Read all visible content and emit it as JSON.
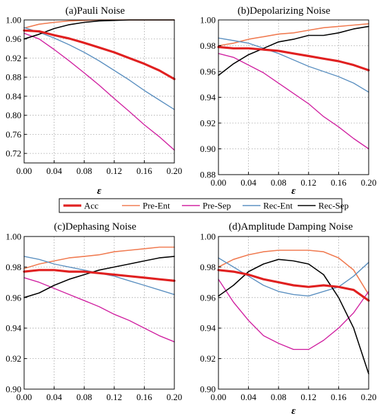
{
  "chart_data": [
    {
      "type": "line",
      "title": "(a)Pauli Noise",
      "xlabel": "ε",
      "ylabel": "",
      "xlim": [
        0,
        0.2
      ],
      "ylim": [
        0.7,
        1.0
      ],
      "grid": true,
      "xticks": [
        "0.00",
        "0.04",
        "0.08",
        "0.12",
        "0.16",
        "0.20"
      ],
      "yticks": [
        "0.72",
        "0.76",
        "0.80",
        "0.84",
        "0.88",
        "0.92",
        "0.96",
        "1.00"
      ],
      "x": [
        0,
        0.02,
        0.04,
        0.06,
        0.08,
        0.1,
        0.12,
        0.14,
        0.16,
        0.18,
        0.2
      ],
      "series": [
        {
          "name": "Acc",
          "values": [
            0.978,
            0.976,
            0.968,
            0.961,
            0.952,
            0.942,
            0.932,
            0.92,
            0.908,
            0.894,
            0.876
          ]
        },
        {
          "name": "Pre-Ent",
          "values": [
            0.983,
            0.991,
            0.995,
            0.998,
            0.999,
            1.0,
            1.0,
            1.0,
            1.0,
            1.0,
            1.0
          ]
        },
        {
          "name": "Pre-Sep",
          "values": [
            0.972,
            0.96,
            0.938,
            0.914,
            0.889,
            0.863,
            0.835,
            0.808,
            0.78,
            0.755,
            0.727
          ]
        },
        {
          "name": "Rec-Ent",
          "values": [
            0.984,
            0.974,
            0.962,
            0.948,
            0.932,
            0.914,
            0.894,
            0.874,
            0.852,
            0.832,
            0.812
          ]
        },
        {
          "name": "Rec-Sep",
          "values": [
            0.96,
            0.97,
            0.982,
            0.99,
            0.995,
            0.998,
            0.999,
            1.0,
            1.0,
            1.0,
            1.0
          ]
        }
      ]
    },
    {
      "type": "line",
      "title": "(b)Depolarizing Noise",
      "xlabel": "ε",
      "ylabel": "",
      "xlim": [
        0,
        0.2
      ],
      "ylim": [
        0.88,
        1.0
      ],
      "grid": true,
      "xticks": [
        "0.00",
        "0.04",
        "0.08",
        "0.12",
        "0.16",
        "0.20"
      ],
      "yticks": [
        "0.88",
        "0.90",
        "0.92",
        "0.94",
        "0.96",
        "0.98",
        "1.00"
      ],
      "x": [
        0,
        0.02,
        0.04,
        0.06,
        0.08,
        0.1,
        0.12,
        0.14,
        0.16,
        0.18,
        0.2
      ],
      "series": [
        {
          "name": "Acc",
          "values": [
            0.979,
            0.978,
            0.978,
            0.977,
            0.976,
            0.974,
            0.972,
            0.97,
            0.968,
            0.965,
            0.961
          ]
        },
        {
          "name": "Pre-Ent",
          "values": [
            0.98,
            0.982,
            0.985,
            0.987,
            0.989,
            0.99,
            0.992,
            0.994,
            0.995,
            0.996,
            0.997
          ]
        },
        {
          "name": "Pre-Sep",
          "values": [
            0.974,
            0.971,
            0.965,
            0.959,
            0.951,
            0.943,
            0.935,
            0.925,
            0.917,
            0.908,
            0.9
          ]
        },
        {
          "name": "Rec-Ent",
          "values": [
            0.986,
            0.984,
            0.982,
            0.978,
            0.974,
            0.969,
            0.964,
            0.96,
            0.956,
            0.951,
            0.944
          ]
        },
        {
          "name": "Rec-Sep",
          "values": [
            0.957,
            0.966,
            0.973,
            0.978,
            0.983,
            0.985,
            0.988,
            0.988,
            0.99,
            0.993,
            0.995
          ]
        }
      ]
    },
    {
      "type": "line",
      "title": "(c)Dephasing Noise",
      "xlabel": "",
      "ylabel": "",
      "xlim": [
        0,
        0.2
      ],
      "ylim": [
        0.9,
        1.0
      ],
      "grid": true,
      "xticks": [
        "0.00",
        "0.04",
        "0.08",
        "0.12",
        "0.16",
        "0.20"
      ],
      "yticks": [
        "0.90",
        "0.92",
        "0.94",
        "0.96",
        "0.98",
        "1.00"
      ],
      "x": [
        0,
        0.02,
        0.04,
        0.06,
        0.08,
        0.1,
        0.12,
        0.14,
        0.16,
        0.18,
        0.2
      ],
      "series": [
        {
          "name": "Acc",
          "values": [
            0.977,
            0.978,
            0.978,
            0.977,
            0.977,
            0.976,
            0.975,
            0.974,
            0.973,
            0.972,
            0.971
          ]
        },
        {
          "name": "Pre-Ent",
          "values": [
            0.979,
            0.982,
            0.984,
            0.986,
            0.987,
            0.988,
            0.99,
            0.991,
            0.992,
            0.993,
            0.993
          ]
        },
        {
          "name": "Pre-Sep",
          "values": [
            0.973,
            0.97,
            0.966,
            0.962,
            0.958,
            0.954,
            0.949,
            0.945,
            0.94,
            0.935,
            0.931
          ]
        },
        {
          "name": "Rec-Ent",
          "values": [
            0.987,
            0.985,
            0.982,
            0.98,
            0.978,
            0.976,
            0.974,
            0.971,
            0.968,
            0.965,
            0.962
          ]
        },
        {
          "name": "Rec-Sep",
          "values": [
            0.96,
            0.963,
            0.968,
            0.972,
            0.975,
            0.978,
            0.98,
            0.982,
            0.984,
            0.986,
            0.987
          ]
        }
      ]
    },
    {
      "type": "line",
      "title": "(d)Amplitude Damping Noise",
      "xlabel": "ε",
      "ylabel": "",
      "xlim": [
        0,
        0.2
      ],
      "ylim": [
        0.9,
        1.0
      ],
      "grid": true,
      "xticks": [
        "0.00",
        "0.04",
        "0.08",
        "0.12",
        "0.16",
        "0.20"
      ],
      "yticks": [
        "0.90",
        "0.92",
        "0.94",
        "0.96",
        "0.98",
        "1.00"
      ],
      "x": [
        0,
        0.02,
        0.04,
        0.06,
        0.08,
        0.1,
        0.12,
        0.14,
        0.16,
        0.18,
        0.2
      ],
      "series": [
        {
          "name": "Acc",
          "values": [
            0.978,
            0.977,
            0.975,
            0.972,
            0.97,
            0.968,
            0.967,
            0.968,
            0.967,
            0.965,
            0.958
          ]
        },
        {
          "name": "Pre-Ent",
          "values": [
            0.98,
            0.985,
            0.988,
            0.99,
            0.991,
            0.991,
            0.991,
            0.99,
            0.986,
            0.978,
            0.962
          ]
        },
        {
          "name": "Pre-Sep",
          "values": [
            0.972,
            0.957,
            0.945,
            0.935,
            0.93,
            0.926,
            0.926,
            0.932,
            0.94,
            0.95,
            0.964
          ]
        },
        {
          "name": "Rec-Ent",
          "values": [
            0.986,
            0.98,
            0.974,
            0.968,
            0.964,
            0.962,
            0.961,
            0.964,
            0.967,
            0.974,
            0.983
          ]
        },
        {
          "name": "Rec-Sep",
          "values": [
            0.961,
            0.968,
            0.977,
            0.982,
            0.985,
            0.984,
            0.982,
            0.975,
            0.96,
            0.94,
            0.91
          ]
        }
      ]
    }
  ],
  "legend": {
    "items": [
      {
        "name": "Acc",
        "color": "#e02020"
      },
      {
        "name": "Pre-Ent",
        "color": "#f07a50"
      },
      {
        "name": "Pre-Sep",
        "color": "#d020a0"
      },
      {
        "name": "Rec-Ent",
        "color": "#5a8fc0"
      },
      {
        "name": "Rec-Sep",
        "color": "#000000"
      }
    ],
    "placement": "center, between top and bottom rows"
  },
  "colors": {
    "Acc": "#e02020",
    "Pre-Ent": "#f07a50",
    "Pre-Sep": "#d020a0",
    "Rec-Ent": "#5a8fc0",
    "Rec-Sep": "#000000"
  }
}
